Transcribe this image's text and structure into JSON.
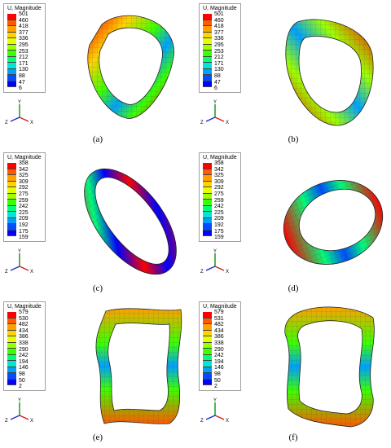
{
  "legend_colors": [
    "#ff0000",
    "#ff5a00",
    "#ffa000",
    "#ffd200",
    "#e6ff00",
    "#9eff00",
    "#3cff00",
    "#00ff78",
    "#00e6d2",
    "#00a0ff",
    "#004cff",
    "#0000ff"
  ],
  "axis_colors": {
    "x": "#d22020",
    "y": "#1a9a1a",
    "z": "#2030d0"
  },
  "panels": [
    {
      "legend_title": "U, Magnitude",
      "values": [
        "501",
        "460",
        "418",
        "377",
        "336",
        "295",
        "253",
        "212",
        "171",
        "130",
        "88",
        "47",
        "6"
      ],
      "axes": {
        "y": "Y",
        "z": "Z",
        "x": "X"
      },
      "caption": "(a)"
    },
    {
      "legend_title": "U, Magnitude",
      "values": [
        "501",
        "460",
        "418",
        "377",
        "336",
        "295",
        "253",
        "212",
        "171",
        "130",
        "88",
        "47",
        "6"
      ],
      "axes": {
        "y": "Y",
        "z": "Z",
        "x": "X"
      },
      "caption": "(b)"
    },
    {
      "legend_title": "U, Magnitude",
      "values": [
        "358",
        "342",
        "325",
        "309",
        "292",
        "275",
        "259",
        "242",
        "225",
        "209",
        "192",
        "175",
        "159"
      ],
      "axes": {
        "y": "Y",
        "z": "Z",
        "x": "X"
      },
      "caption": "(c)"
    },
    {
      "legend_title": "U, Magnitude",
      "values": [
        "358",
        "342",
        "325",
        "309",
        "292",
        "275",
        "259",
        "242",
        "225",
        "209",
        "192",
        "175",
        "159"
      ],
      "axes": {
        "y": "Y",
        "z": "Z",
        "x": "X"
      },
      "caption": "(d)"
    },
    {
      "legend_title": "U, Magnitude",
      "values": [
        "579",
        "530",
        "482",
        "434",
        "386",
        "338",
        "290",
        "242",
        "194",
        "146",
        "98",
        "50",
        "2"
      ],
      "axes": {
        "y": "Y",
        "z": "Z",
        "x": "X"
      },
      "caption": "(e)"
    },
    {
      "legend_title": "U, Magnitude",
      "values": [
        "579",
        "531",
        "482",
        "434",
        "386",
        "338",
        "290",
        "242",
        "194",
        "146",
        "98",
        "50",
        "2"
      ],
      "axes": {
        "y": "Y",
        "z": "Z",
        "x": "X"
      },
      "caption": "(f)"
    }
  ]
}
